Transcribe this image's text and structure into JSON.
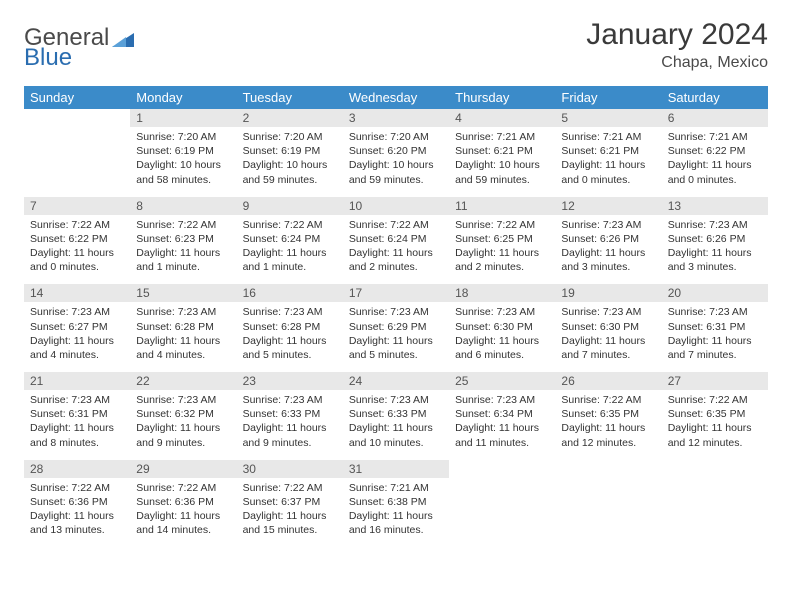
{
  "logo": {
    "part1": "General",
    "part2": "Blue"
  },
  "title": "January 2024",
  "subtitle": "Chapa, Mexico",
  "colors": {
    "header_bg": "#3b8bc9",
    "header_text": "#ffffff",
    "daynum_bg": "#e8e8e8",
    "border": "#2a6db0",
    "text": "#333333",
    "logo_gray": "#4a4a4a",
    "logo_blue": "#2a6db0"
  },
  "weekdays": [
    "Sunday",
    "Monday",
    "Tuesday",
    "Wednesday",
    "Thursday",
    "Friday",
    "Saturday"
  ],
  "weeks": [
    [
      null,
      {
        "n": "1",
        "sr": "Sunrise: 7:20 AM",
        "ss": "Sunset: 6:19 PM",
        "d1": "Daylight: 10 hours",
        "d2": "and 58 minutes."
      },
      {
        "n": "2",
        "sr": "Sunrise: 7:20 AM",
        "ss": "Sunset: 6:19 PM",
        "d1": "Daylight: 10 hours",
        "d2": "and 59 minutes."
      },
      {
        "n": "3",
        "sr": "Sunrise: 7:20 AM",
        "ss": "Sunset: 6:20 PM",
        "d1": "Daylight: 10 hours",
        "d2": "and 59 minutes."
      },
      {
        "n": "4",
        "sr": "Sunrise: 7:21 AM",
        "ss": "Sunset: 6:21 PM",
        "d1": "Daylight: 10 hours",
        "d2": "and 59 minutes."
      },
      {
        "n": "5",
        "sr": "Sunrise: 7:21 AM",
        "ss": "Sunset: 6:21 PM",
        "d1": "Daylight: 11 hours",
        "d2": "and 0 minutes."
      },
      {
        "n": "6",
        "sr": "Sunrise: 7:21 AM",
        "ss": "Sunset: 6:22 PM",
        "d1": "Daylight: 11 hours",
        "d2": "and 0 minutes."
      }
    ],
    [
      {
        "n": "7",
        "sr": "Sunrise: 7:22 AM",
        "ss": "Sunset: 6:22 PM",
        "d1": "Daylight: 11 hours",
        "d2": "and 0 minutes."
      },
      {
        "n": "8",
        "sr": "Sunrise: 7:22 AM",
        "ss": "Sunset: 6:23 PM",
        "d1": "Daylight: 11 hours",
        "d2": "and 1 minute."
      },
      {
        "n": "9",
        "sr": "Sunrise: 7:22 AM",
        "ss": "Sunset: 6:24 PM",
        "d1": "Daylight: 11 hours",
        "d2": "and 1 minute."
      },
      {
        "n": "10",
        "sr": "Sunrise: 7:22 AM",
        "ss": "Sunset: 6:24 PM",
        "d1": "Daylight: 11 hours",
        "d2": "and 2 minutes."
      },
      {
        "n": "11",
        "sr": "Sunrise: 7:22 AM",
        "ss": "Sunset: 6:25 PM",
        "d1": "Daylight: 11 hours",
        "d2": "and 2 minutes."
      },
      {
        "n": "12",
        "sr": "Sunrise: 7:23 AM",
        "ss": "Sunset: 6:26 PM",
        "d1": "Daylight: 11 hours",
        "d2": "and 3 minutes."
      },
      {
        "n": "13",
        "sr": "Sunrise: 7:23 AM",
        "ss": "Sunset: 6:26 PM",
        "d1": "Daylight: 11 hours",
        "d2": "and 3 minutes."
      }
    ],
    [
      {
        "n": "14",
        "sr": "Sunrise: 7:23 AM",
        "ss": "Sunset: 6:27 PM",
        "d1": "Daylight: 11 hours",
        "d2": "and 4 minutes."
      },
      {
        "n": "15",
        "sr": "Sunrise: 7:23 AM",
        "ss": "Sunset: 6:28 PM",
        "d1": "Daylight: 11 hours",
        "d2": "and 4 minutes."
      },
      {
        "n": "16",
        "sr": "Sunrise: 7:23 AM",
        "ss": "Sunset: 6:28 PM",
        "d1": "Daylight: 11 hours",
        "d2": "and 5 minutes."
      },
      {
        "n": "17",
        "sr": "Sunrise: 7:23 AM",
        "ss": "Sunset: 6:29 PM",
        "d1": "Daylight: 11 hours",
        "d2": "and 5 minutes."
      },
      {
        "n": "18",
        "sr": "Sunrise: 7:23 AM",
        "ss": "Sunset: 6:30 PM",
        "d1": "Daylight: 11 hours",
        "d2": "and 6 minutes."
      },
      {
        "n": "19",
        "sr": "Sunrise: 7:23 AM",
        "ss": "Sunset: 6:30 PM",
        "d1": "Daylight: 11 hours",
        "d2": "and 7 minutes."
      },
      {
        "n": "20",
        "sr": "Sunrise: 7:23 AM",
        "ss": "Sunset: 6:31 PM",
        "d1": "Daylight: 11 hours",
        "d2": "and 7 minutes."
      }
    ],
    [
      {
        "n": "21",
        "sr": "Sunrise: 7:23 AM",
        "ss": "Sunset: 6:31 PM",
        "d1": "Daylight: 11 hours",
        "d2": "and 8 minutes."
      },
      {
        "n": "22",
        "sr": "Sunrise: 7:23 AM",
        "ss": "Sunset: 6:32 PM",
        "d1": "Daylight: 11 hours",
        "d2": "and 9 minutes."
      },
      {
        "n": "23",
        "sr": "Sunrise: 7:23 AM",
        "ss": "Sunset: 6:33 PM",
        "d1": "Daylight: 11 hours",
        "d2": "and 9 minutes."
      },
      {
        "n": "24",
        "sr": "Sunrise: 7:23 AM",
        "ss": "Sunset: 6:33 PM",
        "d1": "Daylight: 11 hours",
        "d2": "and 10 minutes."
      },
      {
        "n": "25",
        "sr": "Sunrise: 7:23 AM",
        "ss": "Sunset: 6:34 PM",
        "d1": "Daylight: 11 hours",
        "d2": "and 11 minutes."
      },
      {
        "n": "26",
        "sr": "Sunrise: 7:22 AM",
        "ss": "Sunset: 6:35 PM",
        "d1": "Daylight: 11 hours",
        "d2": "and 12 minutes."
      },
      {
        "n": "27",
        "sr": "Sunrise: 7:22 AM",
        "ss": "Sunset: 6:35 PM",
        "d1": "Daylight: 11 hours",
        "d2": "and 12 minutes."
      }
    ],
    [
      {
        "n": "28",
        "sr": "Sunrise: 7:22 AM",
        "ss": "Sunset: 6:36 PM",
        "d1": "Daylight: 11 hours",
        "d2": "and 13 minutes."
      },
      {
        "n": "29",
        "sr": "Sunrise: 7:22 AM",
        "ss": "Sunset: 6:36 PM",
        "d1": "Daylight: 11 hours",
        "d2": "and 14 minutes."
      },
      {
        "n": "30",
        "sr": "Sunrise: 7:22 AM",
        "ss": "Sunset: 6:37 PM",
        "d1": "Daylight: 11 hours",
        "d2": "and 15 minutes."
      },
      {
        "n": "31",
        "sr": "Sunrise: 7:21 AM",
        "ss": "Sunset: 6:38 PM",
        "d1": "Daylight: 11 hours",
        "d2": "and 16 minutes."
      },
      null,
      null,
      null
    ]
  ]
}
